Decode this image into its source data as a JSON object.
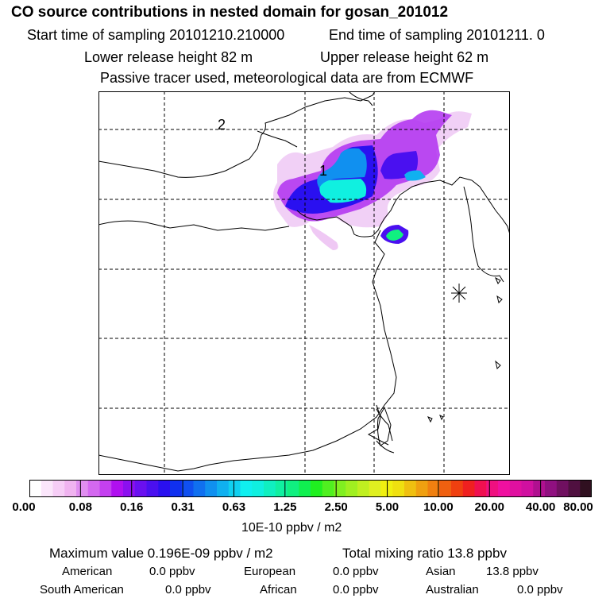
{
  "title": "CO  source contributions in nested domain for gosan_201012",
  "sampling": {
    "start": "Start time of sampling 20101210.210000",
    "end": "End time of sampling 20101211.     0"
  },
  "release": {
    "lower": "Lower release height   82 m",
    "upper": "Upper release height   62 m"
  },
  "info": "Passive tracer used, meteorological data are from ECMWF",
  "map": {
    "labels": {
      "domain2": "2",
      "domain1": "1"
    }
  },
  "colorbar": {
    "ticks": [
      "0.00",
      "0.08",
      "0.16",
      "0.31",
      "0.63",
      "1.25",
      "2.50",
      "5.00",
      "10.00",
      "20.00",
      "40.00",
      "80.00"
    ],
    "colors": [
      "#ffffff",
      "#fbe6fb",
      "#f6cdf6",
      "#f0b3f0",
      "#e08ef0",
      "#d468f0",
      "#c440f0",
      "#b010f0",
      "#8c10f0",
      "#6a10f0",
      "#4a10f0",
      "#2a10f0",
      "#1030f0",
      "#1050f0",
      "#1070f0",
      "#1090f0",
      "#10b0f0",
      "#10d0f0",
      "#10f0f0",
      "#10f0e0",
      "#10f0c0",
      "#10f0a0",
      "#10f080",
      "#10f050",
      "#20f020",
      "#50f020",
      "#80f020",
      "#a0f020",
      "#c0f020",
      "#e0f020",
      "#f0f010",
      "#f0e010",
      "#f0c010",
      "#f0a010",
      "#f08010",
      "#f06010",
      "#f04010",
      "#f02020",
      "#f01050",
      "#f01080",
      "#f010a0",
      "#e010a0",
      "#d010a0",
      "#b01090",
      "#901080",
      "#701060",
      "#501040",
      "#301020"
    ],
    "units": "10E-10 ppbv / m2"
  },
  "summary": {
    "max_value": "Maximum value  0.196E-09 ppbv / m2",
    "total": "Total mixing ratio       13.8 ppbv",
    "american_label": "American",
    "american_value": "0.0 ppbv",
    "european_label": "European",
    "european_value": "0.0 ppbv",
    "asian_label": "Asian",
    "asian_value": "13.8 ppbv",
    "south_american_label": "South American",
    "south_american_value": "0.0 ppbv",
    "african_label": "African",
    "african_value": "0.0 ppbv",
    "australian_label": "Australian",
    "australian_value": "0.0 ppbv"
  }
}
